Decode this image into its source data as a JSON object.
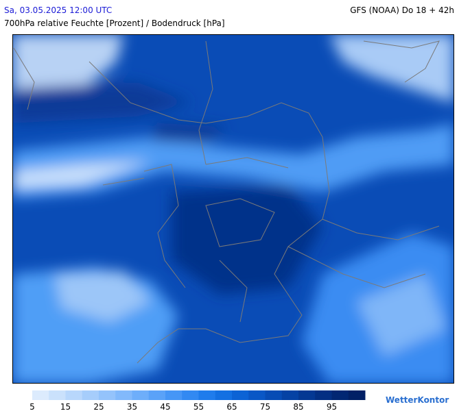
{
  "header": {
    "valid_time": "Sa, 03.05.2025 12:00 UTC",
    "model": "GFS (NOAA) Do 18 + 42h",
    "title": "700hPa relative Feuchte [Prozent] / Bodendruck [hPa]"
  },
  "colorbar": {
    "colors": [
      "#dcebfd",
      "#cae1fc",
      "#b8d7fc",
      "#a6cdfb",
      "#94c3fb",
      "#82b9fb",
      "#6eaefa",
      "#5aa2f8",
      "#4696f6",
      "#3289f2",
      "#1f7cec",
      "#1370e2",
      "#0c63d5",
      "#0957c6",
      "#074cb5",
      "#0542a4",
      "#043893",
      "#032f83",
      "#022773",
      "#022066"
    ],
    "ticks": [
      5,
      15,
      25,
      35,
      45,
      55,
      65,
      75,
      85,
      95
    ]
  },
  "logo": "WetterKontor"
}
